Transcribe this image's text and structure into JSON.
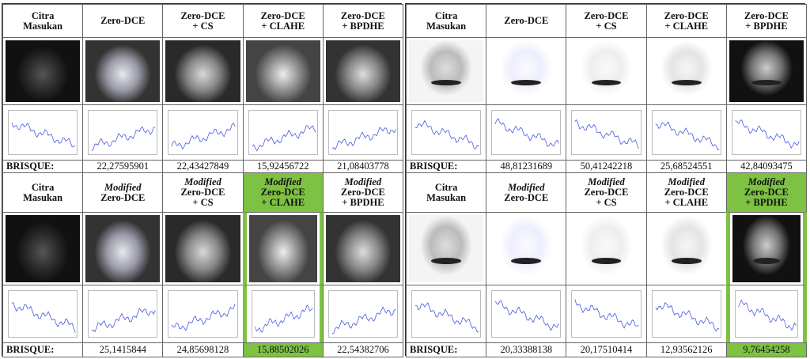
{
  "highlight_color": "#7dc242",
  "panels": [
    {
      "blocks": [
        {
          "headers": [
            [
              "Citra",
              "Masukan"
            ],
            [
              "Zero-DCE"
            ],
            [
              "Zero-DCE",
              "+ CS"
            ],
            [
              "Zero-DCE",
              "+ CLAHE"
            ],
            [
              "Zero-DCE",
              "+ BPDHE"
            ]
          ],
          "brisque_label": "BRISQUE:",
          "values": [
            "22,27595901",
            "22,43427849",
            "15,92456722",
            "21,08403778"
          ]
        },
        {
          "headers": [
            [
              "Citra",
              "Masukan"
            ],
            [
              "Modified",
              "Zero-DCE"
            ],
            [
              "Modified",
              "Zero-DCE",
              "+ CS"
            ],
            [
              "Modified",
              "Zero-DCE",
              "+ CLAHE"
            ],
            [
              "Modified",
              "Zero-DCE",
              "+ BPDHE"
            ]
          ],
          "brisque_label": "BRISQUE:",
          "values": [
            "25,1415844",
            "24,85698128",
            "15,88502026",
            "22,54382706"
          ],
          "highlight_column": 3
        }
      ]
    },
    {
      "blocks": [
        {
          "headers": [
            [
              "Citra",
              "Masukan"
            ],
            [
              "Zero-DCE"
            ],
            [
              "Zero-DCE",
              "+ CS"
            ],
            [
              "Zero-DCE",
              "+ CLAHE"
            ],
            [
              "Zero-DCE",
              "+ BPDHE"
            ]
          ],
          "brisque_label": "BRISQUE:",
          "values": [
            "48,81231689",
            "50,41242218",
            "25,68524551",
            "42,84093475"
          ]
        },
        {
          "headers": [
            [
              "Citra",
              "Masukan"
            ],
            [
              "Modified",
              "Zero-DCE"
            ],
            [
              "Modified",
              "Zero-DCE",
              "+ CS"
            ],
            [
              "Modified",
              "Zero-DCE",
              "+ CLAHE"
            ],
            [
              "Modified",
              "Zero-DCE",
              "+ BPDHE"
            ]
          ],
          "brisque_label": "BRISQUE:",
          "values": [
            "20,33388138",
            "20,17510414",
            "12,93562126",
            "9,76454258"
          ],
          "highlight_column": 4
        }
      ]
    }
  ]
}
